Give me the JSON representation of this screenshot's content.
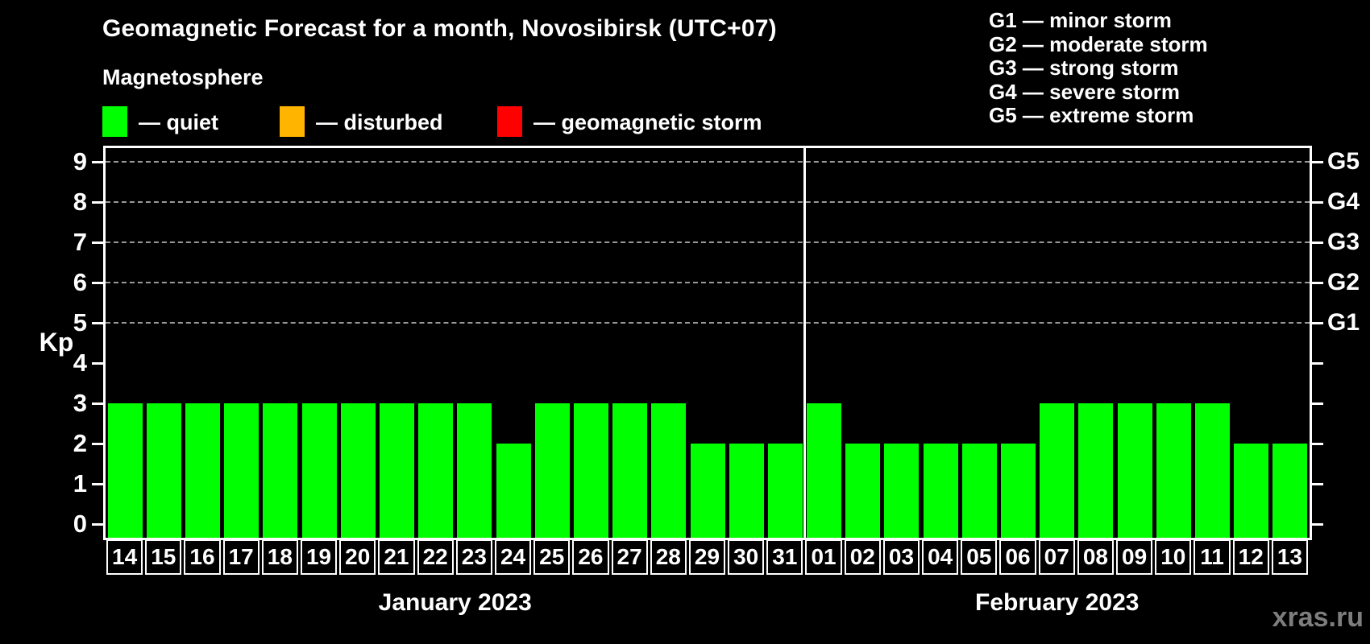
{
  "title": "Geomagnetic Forecast for a month, Novosibirsk (UTC+07)",
  "subtitle": "Magnetosphere",
  "legend": {
    "items": [
      {
        "name": "quiet",
        "label": "— quiet",
        "color": "#00ff00"
      },
      {
        "name": "disturbed",
        "label": "— disturbed",
        "color": "#ffb400"
      },
      {
        "name": "geomagnetic-storm",
        "label": "— geomagnetic storm",
        "color": "#ff0000"
      }
    ]
  },
  "g_scale": [
    "G1 — minor storm",
    "G2 — moderate storm",
    "G3 — strong storm",
    "G4 — severe storm",
    "G5 — extreme storm"
  ],
  "watermark": "xras.ru",
  "chart_data": {
    "type": "bar",
    "title": "Geomagnetic Forecast for a month, Novosibirsk (UTC+07)",
    "ylabel": "Kp",
    "ylim": [
      0,
      9
    ],
    "yticks": [
      0,
      1,
      2,
      3,
      4,
      5,
      6,
      7,
      8,
      9
    ],
    "grid_lines_at": [
      5,
      6,
      7,
      8,
      9
    ],
    "grid_style": "dashed",
    "legend_position": "top-left",
    "bar_color": "#00ff00",
    "categories": [
      "14",
      "15",
      "16",
      "17",
      "18",
      "19",
      "20",
      "21",
      "22",
      "23",
      "24",
      "25",
      "26",
      "27",
      "28",
      "29",
      "30",
      "31",
      "01",
      "02",
      "03",
      "04",
      "05",
      "06",
      "07",
      "08",
      "09",
      "10",
      "11",
      "12",
      "13"
    ],
    "values": [
      3,
      3,
      3,
      3,
      3,
      3,
      3,
      3,
      3,
      3,
      2,
      3,
      3,
      3,
      3,
      2,
      2,
      2,
      3,
      2,
      2,
      2,
      2,
      2,
      3,
      3,
      3,
      3,
      3,
      2,
      2
    ],
    "groups": [
      {
        "label": "January 2023",
        "count": 18
      },
      {
        "label": "February 2023",
        "count": 13
      }
    ],
    "right_axis": [
      {
        "value": 5,
        "label": "G1"
      },
      {
        "value": 6,
        "label": "G2"
      },
      {
        "value": 7,
        "label": "G3"
      },
      {
        "value": 8,
        "label": "G4"
      },
      {
        "value": 9,
        "label": "G5"
      }
    ]
  }
}
